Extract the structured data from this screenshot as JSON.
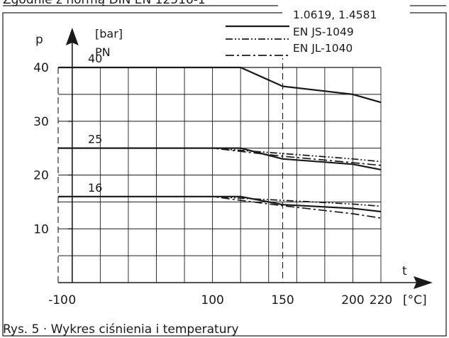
{
  "header_text": "Zgodnie z normą DIN EN 12516-1",
  "caption": "Rys. 5 · Wykres ciśnienia i temperatury",
  "chart_data": {
    "type": "line",
    "xlabel": "t",
    "xunit": "[°C]",
    "ylabel": "p",
    "yunit": "[bar]",
    "pn_label": "PN",
    "xlim": [
      -10,
      230
    ],
    "ylim": [
      0,
      42
    ],
    "x_ticks": [
      -10,
      0,
      100,
      150,
      200,
      220
    ],
    "x_tick_labels": [
      "-10",
      "0",
      "100",
      "150",
      "200",
      "220"
    ],
    "y_ticks": [
      10,
      20,
      30,
      40
    ],
    "y_tick_labels": [
      "10",
      "20",
      "30",
      "40"
    ],
    "grid": true,
    "legend_position": "top-right",
    "legend": [
      {
        "label": "1.0619, 1.4581",
        "style": "solid"
      },
      {
        "label": "EN JS-1049",
        "style": "dash-dot-dot"
      },
      {
        "label": "EN JL-1040",
        "style": "dash-dot"
      }
    ],
    "pn_levels": [
      {
        "label": "40",
        "value": 40
      },
      {
        "label": "25",
        "value": 25
      },
      {
        "label": "16",
        "value": 16
      }
    ],
    "series": [
      {
        "style": "solid",
        "x": [
          -10,
          120,
          150,
          200,
          220
        ],
        "y": [
          40,
          40,
          36.5,
          35,
          33.5
        ]
      },
      {
        "style": "solid",
        "x": [
          -10,
          120,
          150,
          200,
          220
        ],
        "y": [
          25,
          25,
          23,
          22,
          21
        ]
      },
      {
        "style": "solid",
        "x": [
          -10,
          120,
          150,
          200,
          220
        ],
        "y": [
          16,
          16,
          14.5,
          13.8,
          13.2
        ]
      },
      {
        "style": "dash-dot-dot",
        "x": [
          -10,
          100,
          120,
          150,
          200,
          220
        ],
        "y": [
          25,
          25,
          24.6,
          24,
          23,
          22.5
        ]
      },
      {
        "style": "dash-dot-dot",
        "x": [
          -10,
          100,
          120,
          150,
          200,
          220
        ],
        "y": [
          16,
          16,
          15.7,
          15.3,
          14.6,
          14.2
        ]
      },
      {
        "style": "dash-dot",
        "x": [
          -10,
          100,
          120,
          150,
          200,
          220
        ],
        "y": [
          25,
          25,
          24.4,
          23.5,
          22.3,
          21.8
        ]
      },
      {
        "style": "dash-dot",
        "x": [
          -10,
          100,
          120,
          150,
          200,
          220
        ],
        "y": [
          16,
          16,
          15.3,
          14.3,
          12.8,
          12
        ]
      }
    ]
  }
}
